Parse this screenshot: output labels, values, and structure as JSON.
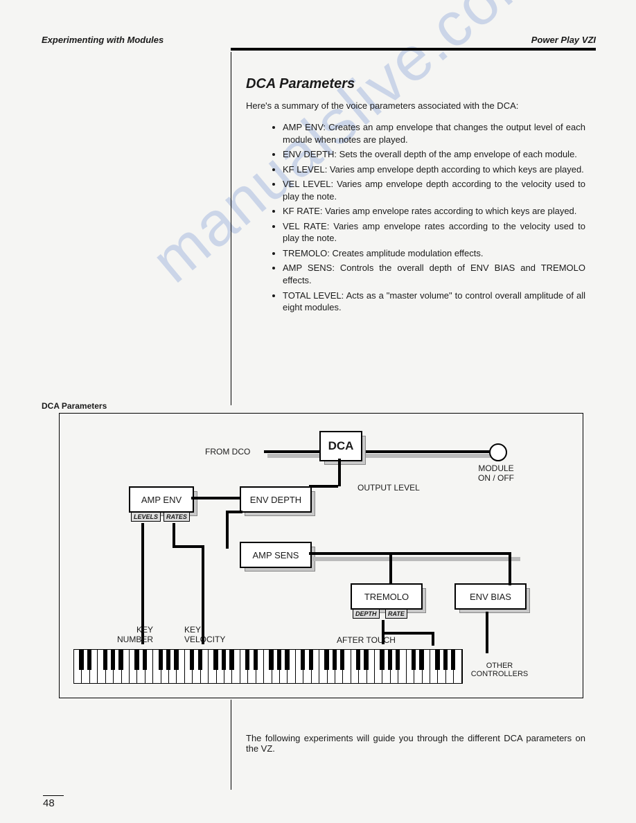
{
  "header": {
    "left": "Experimenting with Modules",
    "right": "Power Play VZI"
  },
  "section_title": "DCA Parameters",
  "intro": "Here's a summary of the voice parameters associated with the DCA:",
  "bullets": [
    "AMP ENV: Creates an amp envelope that changes the output level of each module when notes are played.",
    "ENV DEPTH: Sets the overall depth of the amp envelope of each module.",
    "KF LEVEL: Varies amp envelope depth according to which keys are played.",
    "VEL LEVEL: Varies amp envelope depth according to the velocity used to play the note.",
    "KF RATE: Varies amp envelope rates according to which keys are played.",
    "VEL RATE: Varies amp envelope rates according to the velocity used to play the note.",
    "TREMOLO: Creates amplitude modulation effects.",
    "AMP SENS: Controls the overall depth of ENV BIAS and TREMOLO effects.",
    "TOTAL LEVEL: Acts as a \"master volume\" to control overall amplitude of all eight modules."
  ],
  "sidebar_label": "DCA Parameters",
  "diagram": {
    "from_dco": "FROM DCO",
    "dca": "DCA",
    "module_onoff_1": "MODULE",
    "module_onoff_2": "ON / OFF",
    "output_level": "OUTPUT LEVEL",
    "amp_env": "AMP ENV",
    "env_depth": "ENV DEPTH",
    "amp_sens": "AMP SENS",
    "tremolo": "TREMOLO",
    "env_bias": "ENV BIAS",
    "levels": "LEVELS",
    "rates": "RATES",
    "depth": "DEPTH",
    "rate": "RATE",
    "key_number_1": "KEY",
    "key_number_2": "NUMBER",
    "key_velocity_1": "KEY",
    "key_velocity_2": "VELOCITY",
    "after_touch": "AFTER TOUCH",
    "other_controllers_1": "OTHER",
    "other_controllers_2": "CONTROLLERS",
    "block_colors": {
      "face": "#ffffff",
      "shadow": "#c8c8c8",
      "border": "#000000"
    },
    "wire_colors": {
      "main": "#000000",
      "shadow": "#bbbbbb"
    }
  },
  "footer_text": "The following experiments will guide you through the different DCA parameters on the VZ.",
  "page_number": "48",
  "watermark": "manualslive.com"
}
